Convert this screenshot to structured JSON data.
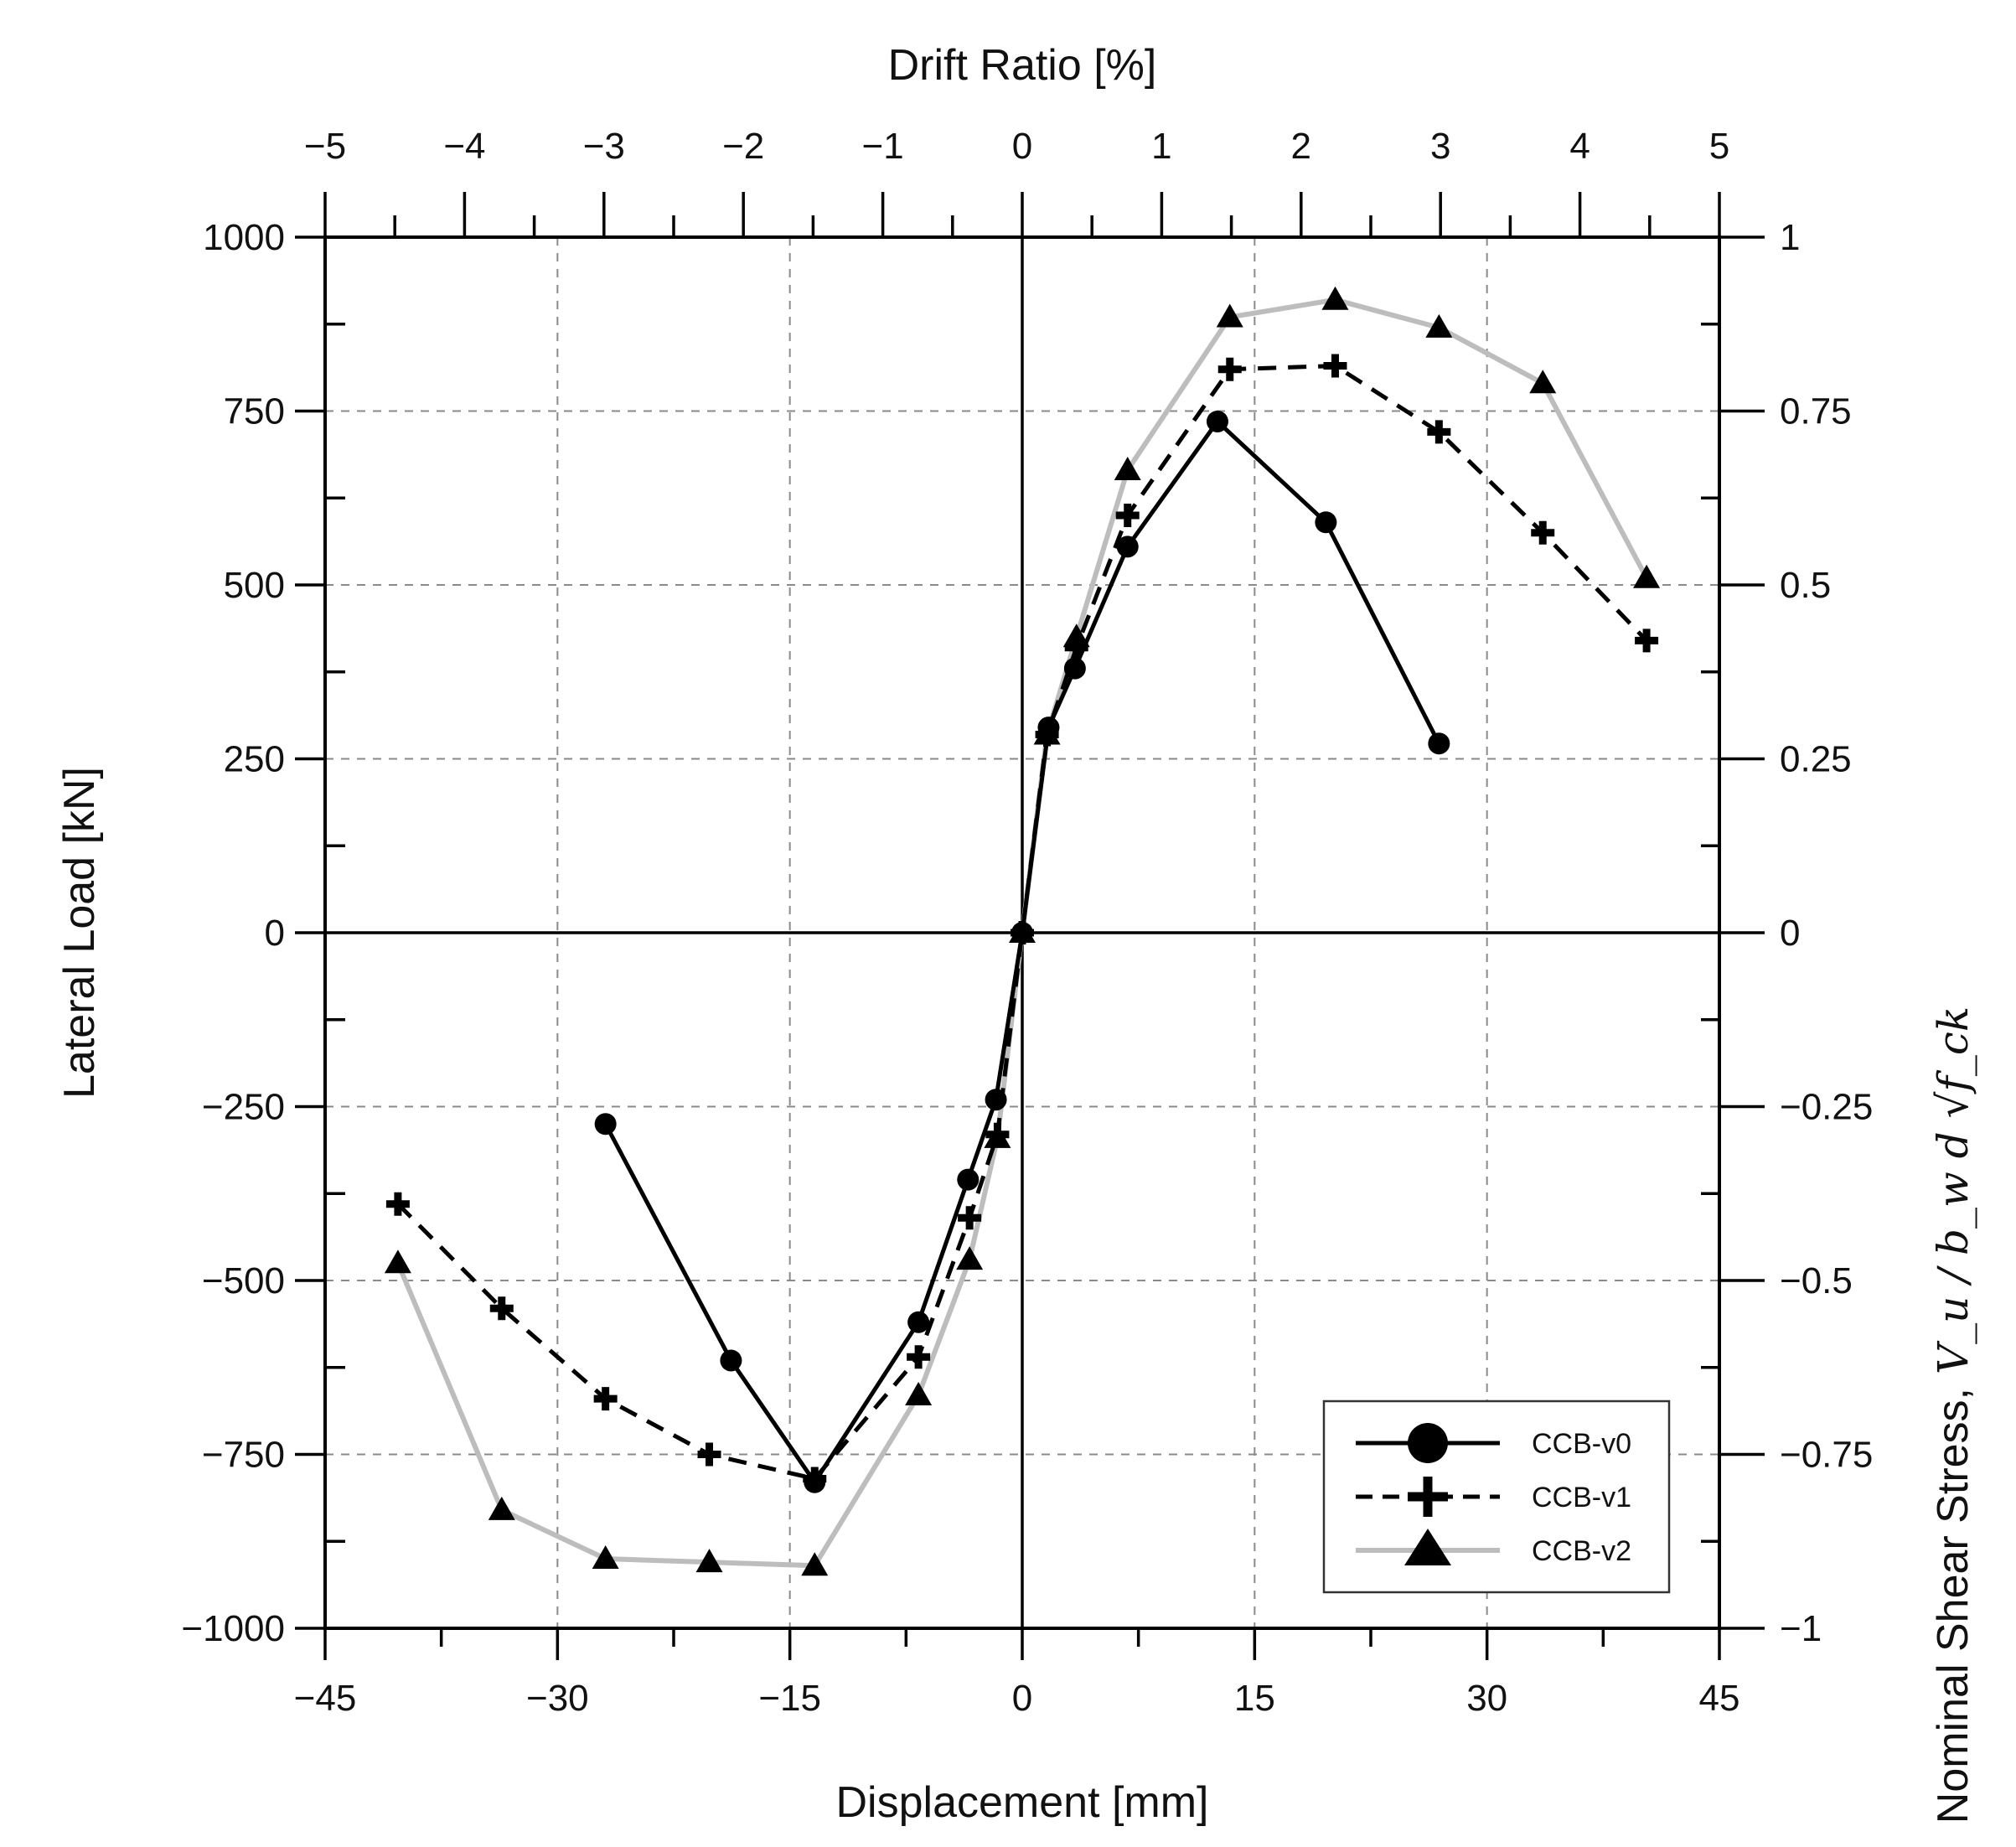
{
  "chart_data": {
    "type": "line",
    "title": "",
    "xlabel": "Displacement [mm]",
    "ylabel": "Lateral Load [kN]",
    "x2label": "Drift Ratio [%]",
    "y2label": "Nominal Shear Stress,",
    "y2label_math": "V_u / b_w d √f_ck",
    "xlim": [
      -45,
      45
    ],
    "ylim": [
      -1000,
      1000
    ],
    "x2lim": [
      -5,
      5
    ],
    "y2lim": [
      -1,
      1
    ],
    "x_ticks": [
      -45,
      -30,
      -15,
      0,
      15,
      30,
      45
    ],
    "x_tick_labels": [
      "−45",
      "−30",
      "−15",
      "0",
      "15",
      "30",
      "45"
    ],
    "y_ticks": [
      -1000,
      -750,
      -500,
      -250,
      0,
      250,
      500,
      750,
      1000
    ],
    "y_tick_labels": [
      "−1000",
      "−750",
      "−500",
      "−250",
      "0",
      "250",
      "500",
      "750",
      "1000"
    ],
    "x2_ticks": [
      -5,
      -4,
      -3,
      -2,
      -1,
      0,
      1,
      2,
      3,
      4,
      5
    ],
    "x2_tick_labels": [
      "−5",
      "−4",
      "−3",
      "−2",
      "−1",
      "0",
      "1",
      "2",
      "3",
      "4",
      "5"
    ],
    "y2_ticks": [
      -1,
      -0.75,
      -0.5,
      -0.25,
      0,
      0.25,
      0.5,
      0.75,
      1
    ],
    "y2_tick_labels": [
      "−1",
      "−0.75",
      "−0.5",
      "−0.25",
      "0",
      "0.25",
      "0.5",
      "0.75",
      "1"
    ],
    "grid": true,
    "legend_position": "bottom-right",
    "series": [
      {
        "name": "CCB-v0",
        "marker": "circle",
        "line_style": "solid",
        "color": "#000000",
        "x": [
          -26.9,
          -18.8,
          -13.4,
          -6.7,
          -3.5,
          -1.7,
          0,
          1.7,
          3.4,
          6.8,
          12.6,
          19.6,
          26.9
        ],
        "y": [
          -275,
          -615,
          -790,
          -560,
          -355,
          -240,
          0,
          295,
          380,
          555,
          735,
          590,
          272
        ]
      },
      {
        "name": "CCB-v1",
        "marker": "plus",
        "line_style": "dashed",
        "color": "#000000",
        "x": [
          -40.3,
          -33.6,
          -26.9,
          -20.2,
          -13.4,
          -6.7,
          -3.4,
          -1.6,
          0,
          1.6,
          3.5,
          6.8,
          13.4,
          20.2,
          26.9,
          33.6,
          40.3
        ],
        "y": [
          -390,
          -540,
          -670,
          -750,
          -785,
          -610,
          -410,
          -290,
          0,
          285,
          410,
          600,
          810,
          815,
          720,
          575,
          420
        ]
      },
      {
        "name": "CCB-v2",
        "marker": "triangle",
        "line_style": "solid",
        "color": "#bdbdbd",
        "x": [
          -40.3,
          -33.6,
          -26.9,
          -20.2,
          -13.4,
          -6.7,
          -3.4,
          -1.6,
          0,
          1.6,
          3.5,
          6.8,
          13.4,
          20.2,
          26.9,
          33.6,
          40.3
        ],
        "y": [
          -475,
          -830,
          -900,
          -905,
          -910,
          -665,
          -470,
          -295,
          0,
          285,
          425,
          665,
          885,
          910,
          870,
          790,
          510
        ]
      }
    ]
  }
}
